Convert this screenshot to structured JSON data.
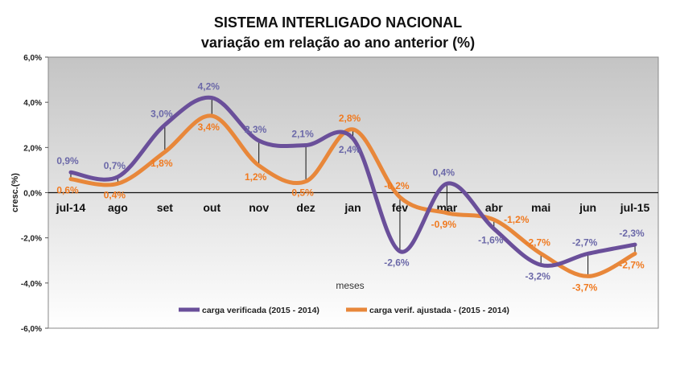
{
  "chart_data": {
    "type": "line",
    "title": "SISTEMA INTERLIGADO  NACIONAL",
    "subtitle": "variação em relação ao ano anterior (%)",
    "xlabel": "meses",
    "ylabel": "cresc.(%)",
    "ylim": [
      -6,
      6
    ],
    "yticks": [
      "6,0%",
      "4,0%",
      "2,0%",
      "0,0%",
      "-2,0%",
      "-4,0%",
      "-6,0%"
    ],
    "ytick_values": [
      6,
      4,
      2,
      0,
      -2,
      -4,
      -6
    ],
    "categories": [
      "jul-14",
      "ago",
      "set",
      "out",
      "nov",
      "dez",
      "jan",
      "fev",
      "mar",
      "abr",
      "mai",
      "jun",
      "jul-15"
    ],
    "legend_position": "bottom",
    "series": [
      {
        "name": "carga verificada  (2015 - 2014)",
        "color": "#6a4f9a",
        "label_color": "#6b68a8",
        "values": [
          0.9,
          0.7,
          3.0,
          4.2,
          2.3,
          2.1,
          2.4,
          -2.6,
          0.4,
          -1.6,
          -3.2,
          -2.7,
          -2.3
        ],
        "labels": [
          "0,9%",
          "0,7%",
          "3,0%",
          "4,2%",
          "2,3%",
          "2,1%",
          "2,4%",
          "-2,6%",
          "0,4%",
          "-1,6%",
          "-3,2%",
          "-2,7%",
          "-2,3%"
        ]
      },
      {
        "name": "carga verif. ajustada - (2015 - 2014)",
        "color": "#e8873a",
        "label_color": "#f07a20",
        "values": [
          0.6,
          0.4,
          1.8,
          3.4,
          1.2,
          0.5,
          2.8,
          -0.2,
          -0.9,
          -1.2,
          -2.7,
          -3.7,
          -2.7
        ],
        "labels": [
          "0,6%",
          "0,4%",
          "1,8%",
          "3,4%",
          "1,2%",
          "0,5%",
          "2,8%",
          "-0,2%",
          "-0,9%",
          "-1,2%",
          "-2,7%",
          "-3,7%",
          "-2,7%"
        ]
      }
    ]
  }
}
